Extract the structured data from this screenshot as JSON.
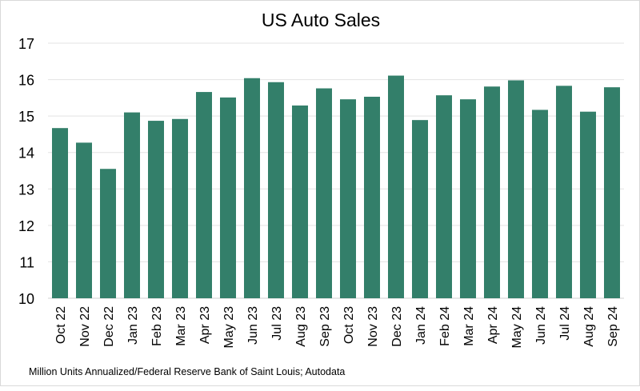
{
  "chart_data": {
    "type": "bar",
    "title": "US Auto Sales",
    "xlabel": "",
    "ylabel": "",
    "ylim": [
      10,
      17
    ],
    "yticks": [
      "10",
      "11",
      "12",
      "13",
      "14",
      "15",
      "16",
      "17"
    ],
    "grid": true,
    "bar_color": "#337f6a",
    "categories": [
      "Oct 22",
      "Nov 22",
      "Dec 22",
      "Jan 23",
      "Feb 23",
      "Mar 23",
      "Apr 23",
      "May 23",
      "Jun 23",
      "Jul 23",
      "Aug 23",
      "Sep 23",
      "Oct 23",
      "Nov 23",
      "Dec 23",
      "Jan 24",
      "Feb 24",
      "Mar 24",
      "Apr 24",
      "May 24",
      "Jun 24",
      "Jul 24",
      "Aug 24",
      "Sep 24"
    ],
    "values": [
      14.67,
      14.27,
      13.55,
      15.1,
      14.87,
      14.92,
      15.66,
      15.51,
      16.04,
      15.93,
      15.29,
      15.76,
      15.46,
      15.53,
      16.11,
      14.89,
      15.57,
      15.46,
      15.81,
      15.98,
      15.17,
      15.83,
      15.12,
      15.79
    ],
    "footnote": "Million Units Annualized/Federal Reserve Bank of Saint Louis; Autodata"
  }
}
